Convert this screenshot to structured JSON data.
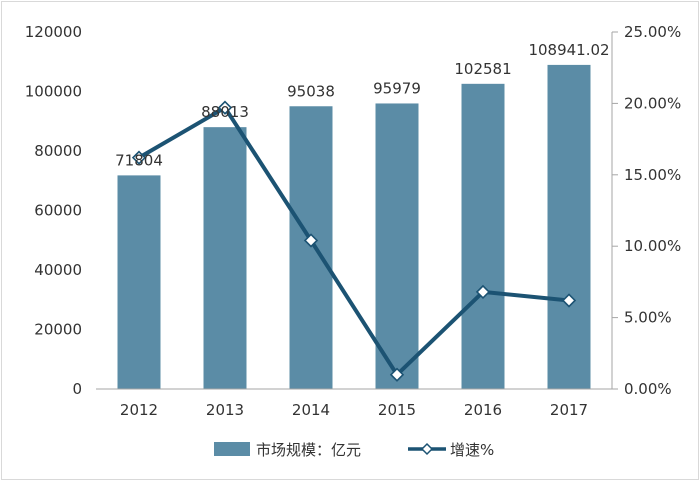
{
  "chart_data": {
    "type": "bar",
    "categories": [
      "2012",
      "2013",
      "2014",
      "2015",
      "2016",
      "2017"
    ],
    "series": [
      {
        "name": "市场规模：亿元",
        "type": "bar",
        "axis": "left",
        "values": [
          71804,
          88013,
          95038,
          95979,
          102581,
          108941.02
        ],
        "data_labels": [
          "71804",
          "88013",
          "95038",
          "95979",
          "102581",
          "108941.02"
        ],
        "color": "#5b8ca6"
      },
      {
        "name": "增速%",
        "type": "line",
        "axis": "right",
        "values": [
          16.2,
          19.7,
          10.4,
          1.0,
          6.8,
          6.2
        ],
        "color": "#1c5373"
      }
    ],
    "y_left": {
      "min": 0,
      "max": 120000,
      "ticks": [
        0,
        20000,
        40000,
        60000,
        80000,
        100000,
        120000
      ],
      "tick_labels": [
        "0",
        "20000",
        "40000",
        "60000",
        "80000",
        "100000",
        "120000"
      ]
    },
    "y_right": {
      "min": 0,
      "max": 25,
      "ticks": [
        0,
        5,
        10,
        15,
        20,
        25
      ],
      "tick_labels": [
        "0.00%",
        "5.00%",
        "10.00%",
        "15.00%",
        "20.00%",
        "25.00%"
      ]
    },
    "grid": false,
    "legend": {
      "position": "bottom",
      "entries": [
        "市场规模：亿元",
        "增速%"
      ]
    }
  }
}
